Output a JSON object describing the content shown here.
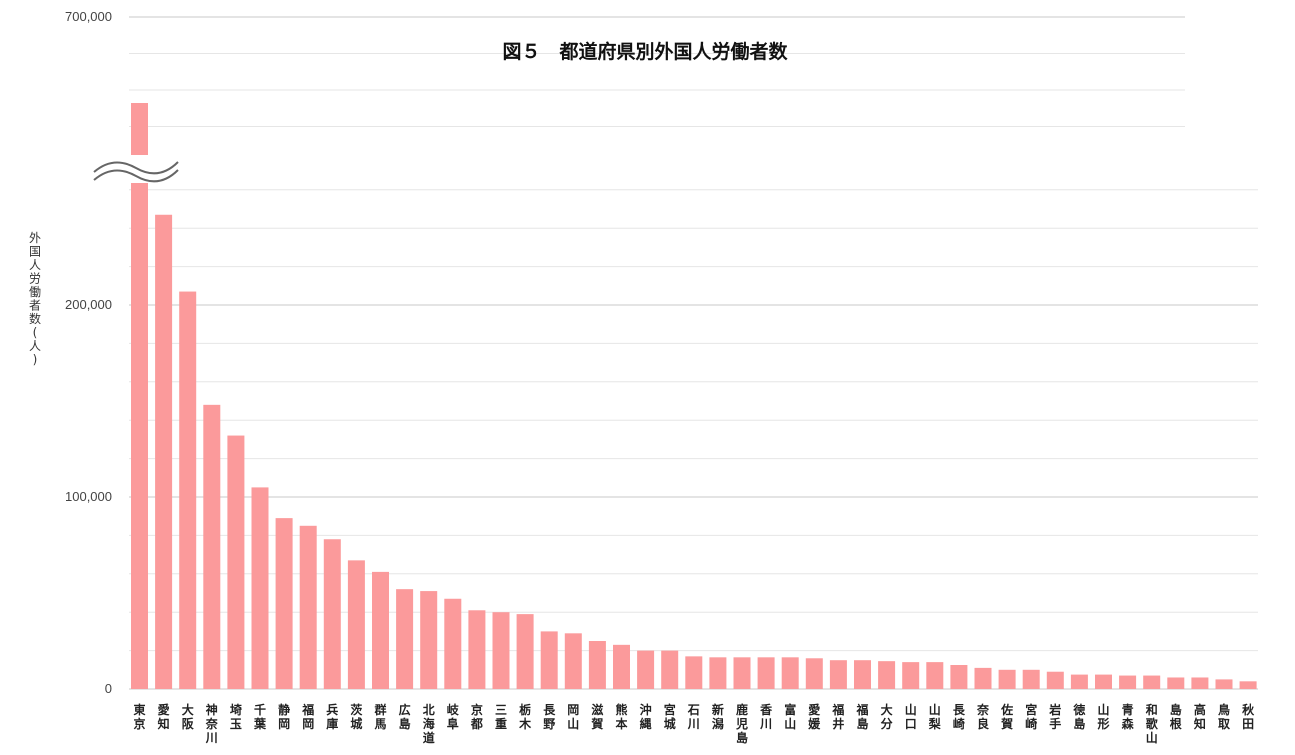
{
  "chart_data": {
    "type": "bar",
    "title": "図５　都道府県別外国人労働者数",
    "ylabel": "外国人労働者数(人)",
    "xlabel": "",
    "y_ticks": [
      {
        "value": 0,
        "label": "0"
      },
      {
        "value": 100000,
        "label": "100,000"
      },
      {
        "value": 200000,
        "label": "200,000"
      },
      {
        "value": 700000,
        "label": "700,000"
      }
    ],
    "axis_break": true,
    "grid": true,
    "bar_color": "#fb9a9b",
    "categories": [
      "東京",
      "愛知",
      "大阪",
      "神奈川",
      "埼玉",
      "千葉",
      "静岡",
      "福岡",
      "兵庫",
      "茨城",
      "群馬",
      "広島",
      "北海道",
      "岐阜",
      "京都",
      "三重",
      "栃木",
      "長野",
      "岡山",
      "滋賀",
      "熊本",
      "沖縄",
      "宮城",
      "石川",
      "新潟",
      "鹿児島",
      "香川",
      "富山",
      "愛媛",
      "福井",
      "福島",
      "大分",
      "山口",
      "山梨",
      "長崎",
      "奈良",
      "佐賀",
      "宮崎",
      "岩手",
      "徳島",
      "山形",
      "青森",
      "和歌山",
      "島根",
      "高知",
      "鳥取",
      "秋田"
    ],
    "values": [
      542000,
      247000,
      207000,
      148000,
      132000,
      105000,
      89000,
      85000,
      78000,
      67000,
      61000,
      52000,
      51000,
      47000,
      41000,
      40000,
      39000,
      30000,
      29000,
      25000,
      23000,
      20000,
      20000,
      17000,
      16500,
      16500,
      16500,
      16500,
      16000,
      15000,
      15000,
      14500,
      14000,
      14000,
      12500,
      11000,
      10000,
      10000,
      9000,
      7500,
      7500,
      7000,
      7000,
      6000,
      6000,
      5000,
      4000
    ]
  }
}
